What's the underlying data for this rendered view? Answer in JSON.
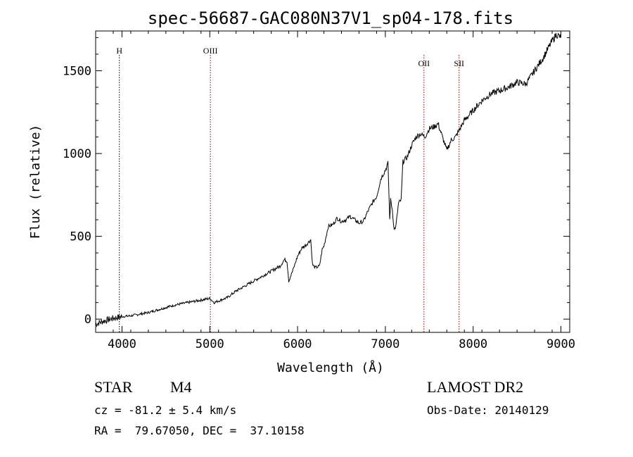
{
  "chart_data": {
    "type": "line",
    "title": "spec-56687-GAC080N37V1_sp04-178.fits",
    "xlabel": "Wavelength (Å)",
    "ylabel": "Flux (relative)",
    "xlim": [
      3700,
      9100
    ],
    "ylim": [
      -80,
      1740
    ],
    "xticks": [
      4000,
      5000,
      6000,
      7000,
      8000,
      9000
    ],
    "yticks": [
      0,
      500,
      1000,
      1500
    ],
    "series": [
      {
        "x": [
          3700,
          3800,
          3900,
          4000,
          4100,
          4200,
          4300,
          4400,
          4500,
          4600,
          4700,
          4800,
          4900,
          5000,
          5050,
          5100,
          5200,
          5300,
          5400,
          5500,
          5600,
          5700,
          5800,
          5850,
          5880,
          5900,
          5950,
          6000,
          6050,
          6100,
          6150,
          6170,
          6200,
          6250,
          6280,
          6300,
          6350,
          6400,
          6450,
          6500,
          6550,
          6600,
          6650,
          6700,
          6750,
          6800,
          6850,
          6900,
          6950,
          7000,
          7030,
          7050,
          7060,
          7080,
          7100,
          7120,
          7150,
          7180,
          7200,
          7250,
          7300,
          7350,
          7400,
          7450,
          7500,
          7550,
          7600,
          7650,
          7700,
          7750,
          7800,
          7850,
          7900,
          8000,
          8100,
          8200,
          8300,
          8400,
          8500,
          8600,
          8700,
          8800,
          8900,
          8950,
          9000
        ],
        "y": [
          -30,
          -10,
          5,
          15,
          20,
          30,
          40,
          55,
          70,
          85,
          95,
          105,
          115,
          125,
          100,
          110,
          130,
          170,
          200,
          230,
          260,
          290,
          320,
          360,
          350,
          230,
          300,
          380,
          430,
          450,
          480,
          330,
          310,
          320,
          420,
          440,
          560,
          570,
          610,
          590,
          600,
          620,
          600,
          580,
          590,
          650,
          700,
          740,
          850,
          900,
          940,
          600,
          720,
          660,
          540,
          560,
          700,
          720,
          950,
          980,
          1050,
          1100,
          1120,
          1100,
          1150,
          1160,
          1180,
          1100,
          1020,
          1080,
          1100,
          1150,
          1200,
          1260,
          1320,
          1360,
          1380,
          1400,
          1430,
          1420,
          1500,
          1580,
          1680,
          1720,
          1700
        ]
      }
    ],
    "lines": [
      {
        "label": "H",
        "x": 3970,
        "color": "#000000"
      },
      {
        "label": "OIII",
        "x": 5007,
        "color": "#8b0000"
      },
      {
        "label": "OII",
        "x": 7440,
        "color": "#8b0000"
      },
      {
        "label": "SII",
        "x": 7840,
        "color": "#8b0000"
      }
    ],
    "grid": false
  },
  "info": {
    "object_type": "STAR",
    "subclass": "M4",
    "survey": "LAMOST DR2",
    "cz": "cz = -81.2 ± 5.4 km/s",
    "obs_date": "Obs-Date: 20140129",
    "coords": "RA =  79.67050, DEC =  37.10158"
  }
}
